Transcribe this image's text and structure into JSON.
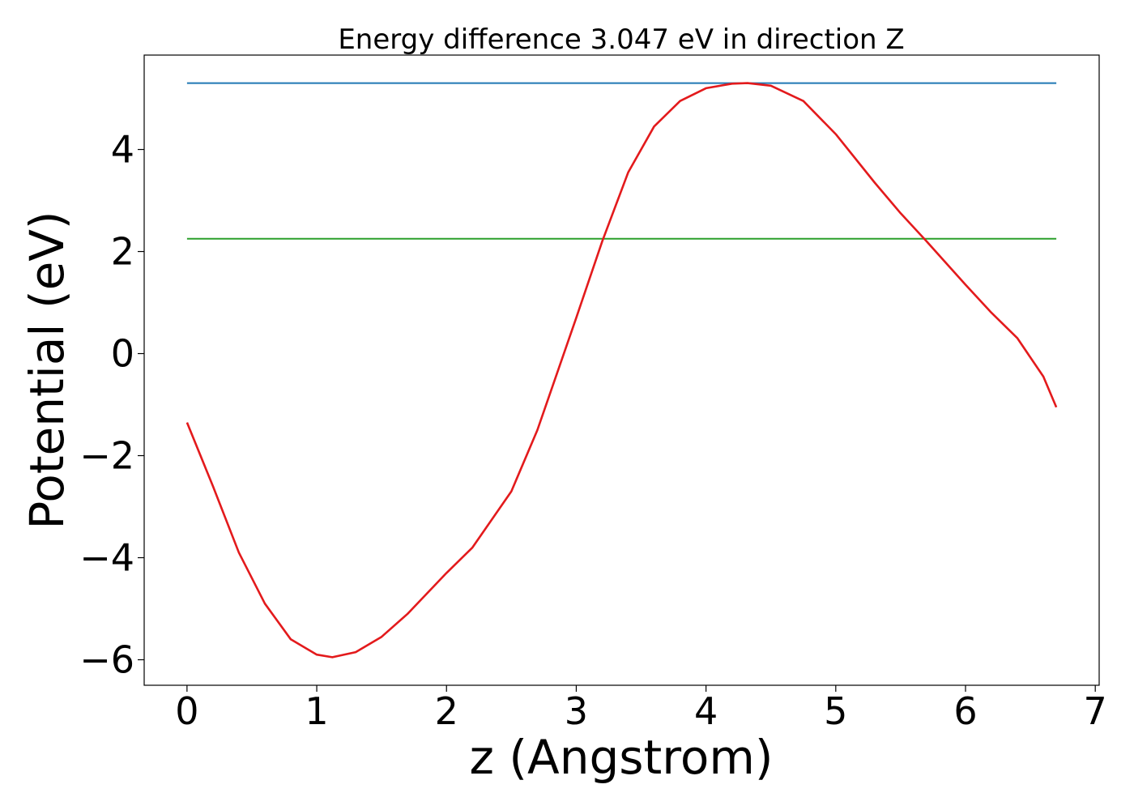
{
  "chart_data": {
    "type": "line",
    "title": "Energy difference 3.047 eV in direction Z",
    "xlabel": "z (Angstrom)",
    "ylabel": "Potential (eV)",
    "xlim": [
      -0.33,
      7.03
    ],
    "ylim": [
      -6.5,
      5.85
    ],
    "xticks": [
      0,
      1,
      2,
      3,
      4,
      5,
      6,
      7
    ],
    "xtick_labels": [
      "0",
      "1",
      "2",
      "3",
      "4",
      "5",
      "6",
      "7"
    ],
    "yticks": [
      4,
      2,
      0,
      -2,
      -4,
      -6
    ],
    "ytick_labels": [
      "4",
      "2",
      "0",
      "−2",
      "−4",
      "−6"
    ],
    "grid": false,
    "series": [
      {
        "color": "#1f77b4",
        "x": [
          0,
          6.7
        ],
        "y": [
          5.3,
          5.3
        ]
      },
      {
        "color": "#2ca02c",
        "x": [
          0,
          6.7
        ],
        "y": [
          2.25,
          2.25
        ]
      },
      {
        "color": "#e31a1c",
        "x": [
          0,
          0.2,
          0.4,
          0.6,
          0.8,
          1.0,
          1.12,
          1.3,
          1.5,
          1.7,
          2.0,
          2.2,
          2.5,
          2.7,
          3.0,
          3.2,
          3.4,
          3.6,
          3.8,
          4.0,
          4.2,
          4.32,
          4.5,
          4.75,
          5.0,
          5.3,
          5.5,
          5.7,
          6.0,
          6.2,
          6.4,
          6.6,
          6.7
        ],
        "y": [
          -1.35,
          -2.6,
          -3.9,
          -4.9,
          -5.6,
          -5.9,
          -5.95,
          -5.85,
          -5.55,
          -5.1,
          -4.3,
          -3.8,
          -2.7,
          -1.5,
          0.7,
          2.2,
          3.55,
          4.45,
          4.95,
          5.2,
          5.29,
          5.3,
          5.25,
          4.95,
          4.3,
          3.35,
          2.75,
          2.2,
          1.35,
          0.8,
          0.3,
          -0.45,
          -1.05
        ]
      }
    ]
  }
}
